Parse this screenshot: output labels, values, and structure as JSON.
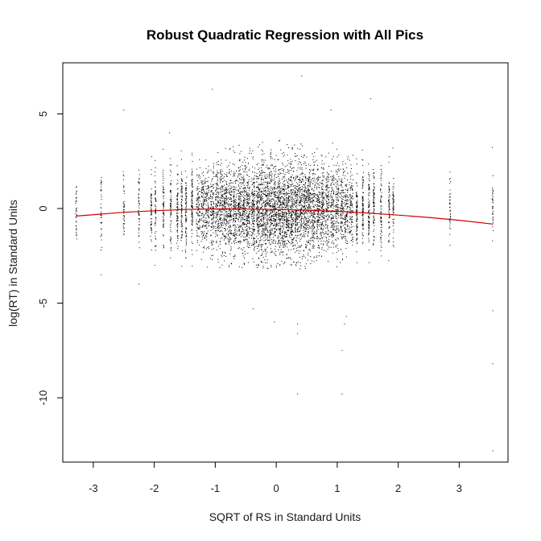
{
  "chart_data": {
    "type": "scatter",
    "title": "Robust Quadratic Regression with All Pics",
    "xlabel": "SQRT of RS in Standard Units",
    "ylabel": "log(RT) in Standard Units",
    "xlim": [
      -3.5,
      3.8
    ],
    "ylim": [
      -13.4,
      7.7
    ],
    "xticks": [
      -3,
      -2,
      -1,
      0,
      1,
      2,
      3
    ],
    "yticks": [
      -10,
      -5,
      0,
      5
    ],
    "grid": false,
    "legend": "none",
    "colors": {
      "points": "#000000",
      "fit_line": "#cc0000",
      "frame": "#000000"
    },
    "x_columns": [
      -3.28,
      -2.87,
      -2.5,
      -2.25,
      -2.05,
      -1.98,
      -1.85,
      -1.73,
      -1.62,
      -1.55,
      -1.48,
      -1.38,
      -1.28,
      -1.2,
      -1.13,
      -1.05,
      -0.97,
      -0.9,
      -0.83,
      -0.76,
      -0.68,
      -0.6,
      -0.53,
      -0.46,
      -0.38,
      -0.3,
      -0.23,
      -0.16,
      -0.09,
      -0.02,
      0.05,
      0.12,
      0.19,
      0.26,
      0.33,
      0.4,
      0.47,
      0.54,
      0.61,
      0.69,
      0.76,
      0.84,
      0.92,
      1.0,
      1.08,
      1.15,
      1.23,
      1.32,
      1.42,
      1.52,
      1.6,
      1.72,
      1.85,
      1.92,
      2.85,
      3.55
    ],
    "outliers": [
      {
        "x": 3.55,
        "y": -12.8
      },
      {
        "x": 3.55,
        "y": -8.2
      },
      {
        "x": 0.35,
        "y": -9.8
      },
      {
        "x": 1.08,
        "y": -9.8
      },
      {
        "x": 1.08,
        "y": -7.5
      },
      {
        "x": 0.35,
        "y": -6.6
      },
      {
        "x": 0.35,
        "y": -6.1
      },
      {
        "x": -0.03,
        "y": -6.0
      },
      {
        "x": 1.12,
        "y": -6.1
      },
      {
        "x": 1.15,
        "y": -5.7
      },
      {
        "x": -0.38,
        "y": -5.3
      },
      {
        "x": 3.55,
        "y": -5.4
      },
      {
        "x": -2.25,
        "y": -4.0
      },
      {
        "x": -2.87,
        "y": -3.5
      },
      {
        "x": 0.42,
        "y": 7.0
      },
      {
        "x": -1.05,
        "y": 6.3
      },
      {
        "x": -2.5,
        "y": 5.2
      },
      {
        "x": 1.55,
        "y": 5.8
      },
      {
        "x": 0.9,
        "y": 5.2
      },
      {
        "x": -1.75,
        "y": 4.0
      }
    ],
    "fit_curve": [
      {
        "x": -3.28,
        "y": -0.4
      },
      {
        "x": -2.5,
        "y": -0.2
      },
      {
        "x": -2.0,
        "y": -0.12
      },
      {
        "x": -1.5,
        "y": -0.05
      },
      {
        "x": -1.0,
        "y": -0.02
      },
      {
        "x": -0.5,
        "y": -0.03
      },
      {
        "x": 0.0,
        "y": -0.05
      },
      {
        "x": 0.5,
        "y": -0.09
      },
      {
        "x": 1.0,
        "y": -0.15
      },
      {
        "x": 1.5,
        "y": -0.24
      },
      {
        "x": 2.0,
        "y": -0.35
      },
      {
        "x": 2.5,
        "y": -0.47
      },
      {
        "x": 3.0,
        "y": -0.62
      },
      {
        "x": 3.55,
        "y": -0.82
      }
    ]
  }
}
